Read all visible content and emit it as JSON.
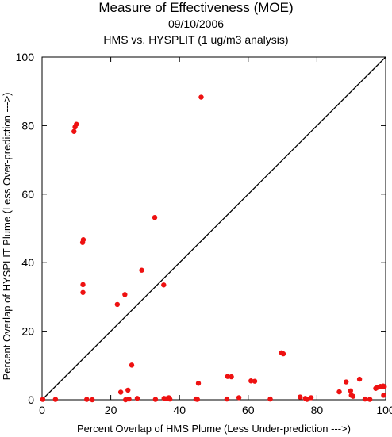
{
  "header": {
    "title": "Measure of Effectiveness (MOE)",
    "date": "09/10/2006",
    "subtitle": "HMS vs. HYSPLIT  (1 ug/m3 analysis)"
  },
  "chart_data": {
    "type": "scatter",
    "title": "Measure of Effectiveness (MOE)",
    "xlabel": "Percent Overlap of HMS Plume (Less Under-prediction --->)",
    "ylabel": "Percent Overlap of HYSPLIT Plume (Less Over-prediction --->)",
    "xlim": [
      0,
      100
    ],
    "ylim": [
      0,
      100
    ],
    "xticks": [
      "0",
      "20",
      "40",
      "60",
      "80",
      "100"
    ],
    "yticks": [
      "0",
      "20",
      "40",
      "60",
      "80",
      "100"
    ],
    "reference_line": "y = x",
    "grid": false,
    "marker_color": "#ee1111",
    "line_color": "#000000",
    "points": [
      [
        0.2,
        0.1
      ],
      [
        3.9,
        0.1
      ],
      [
        9.3,
        78.3
      ],
      [
        9.6,
        79.6
      ],
      [
        10.0,
        80.4
      ],
      [
        11.8,
        45.9
      ],
      [
        12.0,
        46.7
      ],
      [
        11.9,
        33.6
      ],
      [
        11.9,
        31.3
      ],
      [
        13.0,
        0.1
      ],
      [
        14.6,
        0.0
      ],
      [
        21.9,
        27.8
      ],
      [
        22.9,
        2.2
      ],
      [
        24.1,
        30.7
      ],
      [
        24.3,
        0.0
      ],
      [
        25.0,
        2.8
      ],
      [
        25.3,
        0.2
      ],
      [
        26.1,
        10.1
      ],
      [
        27.7,
        0.4
      ],
      [
        29.0,
        37.8
      ],
      [
        32.8,
        53.2
      ],
      [
        33.0,
        0.1
      ],
      [
        35.4,
        33.5
      ],
      [
        35.5,
        0.4
      ],
      [
        36.2,
        0.3
      ],
      [
        36.9,
        0.6
      ],
      [
        37.2,
        0.2
      ],
      [
        44.8,
        0.2
      ],
      [
        45.2,
        0.1
      ],
      [
        45.5,
        4.8
      ],
      [
        46.3,
        88.3
      ],
      [
        53.8,
        0.2
      ],
      [
        54.0,
        6.8
      ],
      [
        55.1,
        6.7
      ],
      [
        57.3,
        0.6
      ],
      [
        60.8,
        5.5
      ],
      [
        61.9,
        5.4
      ],
      [
        66.4,
        0.2
      ],
      [
        69.7,
        13.7
      ],
      [
        70.2,
        13.4
      ],
      [
        75.1,
        0.8
      ],
      [
        76.6,
        0.4
      ],
      [
        77.1,
        0.1
      ],
      [
        78.3,
        0.6
      ],
      [
        86.5,
        2.3
      ],
      [
        88.5,
        5.2
      ],
      [
        89.8,
        2.6
      ],
      [
        90.0,
        1.3
      ],
      [
        90.5,
        1.0
      ],
      [
        92.4,
        6.0
      ],
      [
        94.0,
        0.2
      ],
      [
        95.4,
        0.1
      ],
      [
        97.1,
        3.3
      ],
      [
        97.6,
        3.6
      ],
      [
        98.5,
        3.9
      ],
      [
        99.3,
        4.0
      ],
      [
        99.6,
        3.8
      ],
      [
        99.4,
        1.3
      ]
    ]
  }
}
